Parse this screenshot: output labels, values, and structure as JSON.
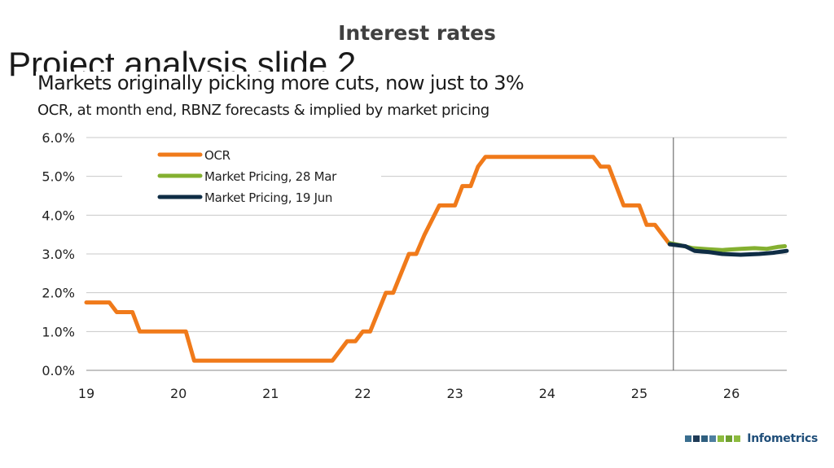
{
  "slide": {
    "title": "Interest rates",
    "ghost_title": "Project analysis slide 2"
  },
  "brand": {
    "name": "Infometrics",
    "name_color": "#1f4e79",
    "squares": [
      "#3a6e8f",
      "#1f3b57",
      "#2f5f7f",
      "#4e7fa0",
      "#8dbb3f",
      "#6fa02f",
      "#8dbb3f"
    ]
  },
  "chart_data": {
    "type": "line",
    "title": "Markets originally picking more cuts, now just to 3%",
    "subtitle": "OCR, at month end, RBNZ forecasts & implied by market pricing",
    "xlabel": "",
    "ylabel": "",
    "x_ticks": [
      19,
      20,
      21,
      22,
      23,
      24,
      25,
      26
    ],
    "xlim": [
      2019,
      2026.6
    ],
    "ylim": [
      0,
      6
    ],
    "y_ticks": [
      "0.0%",
      "1.0%",
      "2.0%",
      "3.0%",
      "4.0%",
      "5.0%",
      "6.0%"
    ],
    "grid": "horizontal",
    "legend_position": "top-left",
    "reference_line_x": 2025.37,
    "series": [
      {
        "name": "OCR",
        "color": "#f07a1a",
        "points": [
          [
            2019.0,
            1.75
          ],
          [
            2019.25,
            1.75
          ],
          [
            2019.33,
            1.5
          ],
          [
            2019.5,
            1.5
          ],
          [
            2019.58,
            1.0
          ],
          [
            2020.08,
            1.0
          ],
          [
            2020.17,
            0.25
          ],
          [
            2021.67,
            0.25
          ],
          [
            2021.83,
            0.75
          ],
          [
            2021.92,
            0.75
          ],
          [
            2022.0,
            1.0
          ],
          [
            2022.08,
            1.0
          ],
          [
            2022.25,
            2.0
          ],
          [
            2022.33,
            2.0
          ],
          [
            2022.5,
            3.0
          ],
          [
            2022.58,
            3.0
          ],
          [
            2022.67,
            3.5
          ],
          [
            2022.83,
            4.25
          ],
          [
            2022.92,
            4.25
          ],
          [
            2023.0,
            4.25
          ],
          [
            2023.08,
            4.75
          ],
          [
            2023.17,
            4.75
          ],
          [
            2023.25,
            5.25
          ],
          [
            2023.33,
            5.5
          ],
          [
            2024.5,
            5.5
          ],
          [
            2024.58,
            5.25
          ],
          [
            2024.67,
            5.25
          ],
          [
            2024.83,
            4.25
          ],
          [
            2025.0,
            4.25
          ],
          [
            2025.08,
            3.75
          ],
          [
            2025.17,
            3.75
          ],
          [
            2025.33,
            3.25
          ]
        ]
      },
      {
        "name": "Market Pricing, 28 Mar",
        "color": "#84b030",
        "points": [
          [
            2025.33,
            3.28
          ],
          [
            2025.45,
            3.22
          ],
          [
            2025.58,
            3.15
          ],
          [
            2025.75,
            3.12
          ],
          [
            2025.9,
            3.1
          ],
          [
            2026.1,
            3.13
          ],
          [
            2026.25,
            3.15
          ],
          [
            2026.38,
            3.13
          ],
          [
            2026.5,
            3.18
          ],
          [
            2026.58,
            3.2
          ]
        ]
      },
      {
        "name": "Market Pricing, 19 Jun",
        "color": "#0f2d45",
        "points": [
          [
            2025.33,
            3.25
          ],
          [
            2025.5,
            3.2
          ],
          [
            2025.6,
            3.08
          ],
          [
            2025.75,
            3.05
          ],
          [
            2025.9,
            3.0
          ],
          [
            2026.1,
            2.98
          ],
          [
            2026.3,
            3.0
          ],
          [
            2026.45,
            3.03
          ],
          [
            2026.6,
            3.08
          ]
        ]
      }
    ]
  }
}
